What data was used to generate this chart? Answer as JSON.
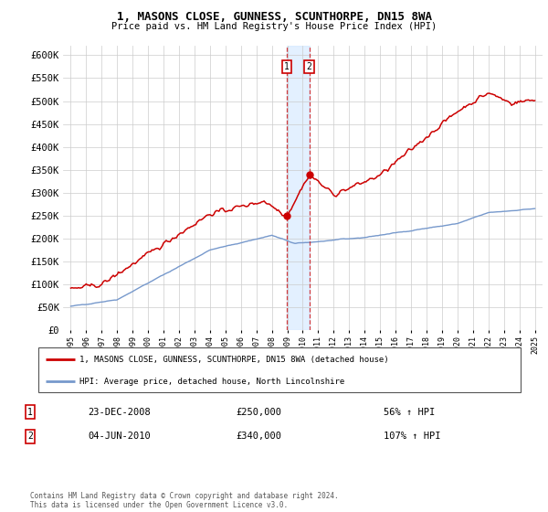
{
  "title": "1, MASONS CLOSE, GUNNESS, SCUNTHORPE, DN15 8WA",
  "subtitle": "Price paid vs. HM Land Registry's House Price Index (HPI)",
  "legend_line1": "1, MASONS CLOSE, GUNNESS, SCUNTHORPE, DN15 8WA (detached house)",
  "legend_line2": "HPI: Average price, detached house, North Lincolnshire",
  "sale1_date": "23-DEC-2008",
  "sale1_price": "£250,000",
  "sale1_hpi": "56% ↑ HPI",
  "sale2_date": "04-JUN-2010",
  "sale2_price": "£340,000",
  "sale2_hpi": "107% ↑ HPI",
  "footer": "Contains HM Land Registry data © Crown copyright and database right 2024.\nThis data is licensed under the Open Government Licence v3.0.",
  "hpi_color": "#7799cc",
  "price_color": "#cc0000",
  "sale1_x": 2008.97,
  "sale1_y": 250000,
  "sale2_x": 2010.42,
  "sale2_y": 340000,
  "ylim": [
    0,
    620000
  ],
  "xlim_start": 1994.5,
  "xlim_end": 2025.5,
  "yticks": [
    0,
    50000,
    100000,
    150000,
    200000,
    250000,
    300000,
    350000,
    400000,
    450000,
    500000,
    550000,
    600000
  ],
  "xticks": [
    1995,
    1996,
    1997,
    1998,
    1999,
    2000,
    2001,
    2002,
    2003,
    2004,
    2005,
    2006,
    2007,
    2008,
    2009,
    2010,
    2011,
    2012,
    2013,
    2014,
    2015,
    2016,
    2017,
    2018,
    2019,
    2020,
    2021,
    2022,
    2023,
    2024,
    2025
  ]
}
